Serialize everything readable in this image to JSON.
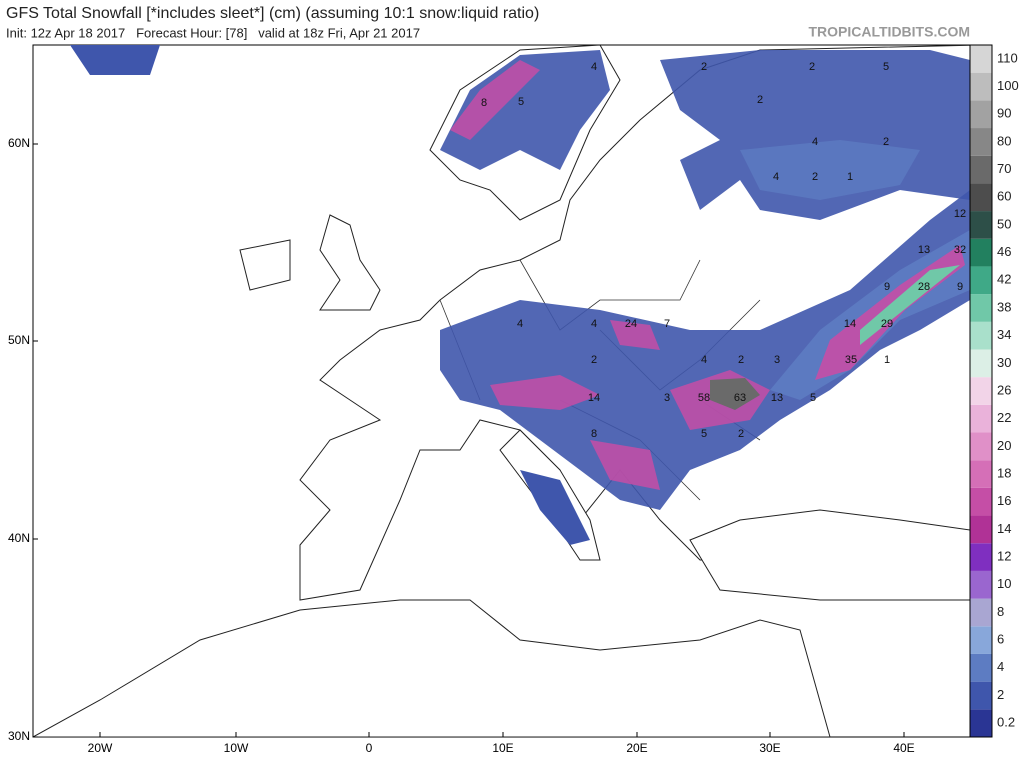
{
  "header": {
    "title": "GFS Total Snowfall [*includes sleet*] (cm) (assuming 10:1 snow:liquid ratio)",
    "subtitle": "Init: 12z Apr 18 2017   Forecast Hour: [78]   valid at 18z Fri, Apr 21 2017",
    "brand": "TROPICALTIDBITS.COM"
  },
  "lat_labels": [
    "60N",
    "50N",
    "40N",
    "30N"
  ],
  "lon_labels": [
    "20W",
    "10W",
    "0",
    "10E",
    "20E",
    "30E",
    "40E"
  ],
  "colorbar": {
    "labels": [
      0.2,
      2,
      4,
      6,
      8,
      10,
      12,
      14,
      16,
      18,
      20,
      22,
      26,
      30,
      34,
      38,
      42,
      46,
      50,
      60,
      70,
      80,
      90,
      100,
      110
    ],
    "colors": [
      "#2a3594",
      "#3f56ac",
      "#5d7cc2",
      "#88a7da",
      "#a9a6d2",
      "#9a66cf",
      "#7f2fc0",
      "#b03296",
      "#c54ea6",
      "#d56fb7",
      "#e090c8",
      "#eab2da",
      "#f2d4e8",
      "#dcefe6",
      "#a9e0cb",
      "#70c8a8",
      "#3fa987",
      "#22805f",
      "#2d4f48",
      "#4d4d4d",
      "#6a6a6a",
      "#878787",
      "#a2a2a2",
      "#bdbdbd",
      "#d6d6d6"
    ]
  },
  "map_labels": [
    4,
    8,
    5,
    2,
    2,
    5,
    2,
    4,
    2,
    4,
    2,
    1,
    4,
    4,
    24,
    7,
    2,
    4,
    2,
    3,
    35,
    1,
    3,
    58,
    63,
    13,
    5,
    14,
    14,
    29,
    9,
    28,
    9,
    13,
    32,
    12,
    8,
    5,
    2
  ]
}
